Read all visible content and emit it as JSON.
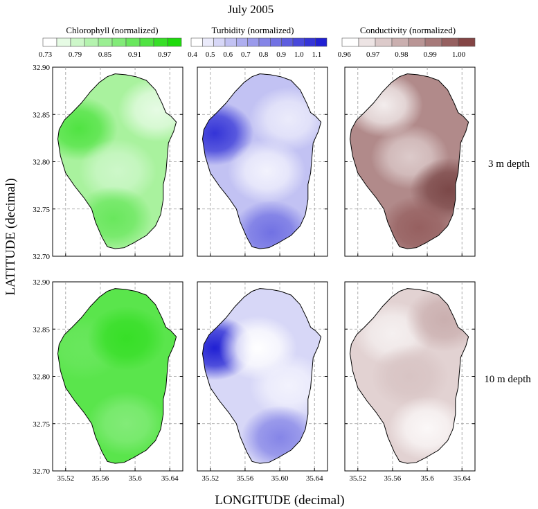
{
  "chart_data": {
    "type": "heatmap",
    "title": "July 2005",
    "xlabel": "LONGITUDE (decimal)",
    "ylabel": "LATITUDE (decimal)",
    "xlim": [
      35.505,
      35.655
    ],
    "ylim": [
      32.7,
      32.9
    ],
    "grid": true,
    "rows": [
      "3 m depth",
      "10 m depth"
    ],
    "y_ticks": [
      "32.90",
      "32.85",
      "32.80",
      "32.75",
      "32.70"
    ],
    "y_tick_values": [
      32.9,
      32.85,
      32.8,
      32.75,
      32.7
    ],
    "x_ticks": [
      {
        "labels": [
          "35.52",
          "35.56",
          "35.6",
          "35.64"
        ],
        "values": [
          35.52,
          35.56,
          35.6,
          35.64
        ]
      },
      {
        "labels": [
          "35.52",
          "35.56",
          "35.60",
          "35.64"
        ],
        "values": [
          35.52,
          35.56,
          35.6,
          35.64
        ]
      },
      {
        "labels": [
          "35.52",
          "35.56",
          "35.6",
          "35.64"
        ],
        "values": [
          35.52,
          35.56,
          35.6,
          35.64
        ]
      }
    ],
    "variables": [
      {
        "name": "Chlorophyll (normalized)",
        "colorbar_ticks": [
          "0.73",
          "0.79",
          "0.85",
          "0.91",
          "0.97"
        ],
        "colors": [
          "#ffffff",
          "#e6fbe4",
          "#cdf7c9",
          "#b4f3ae",
          "#9bef93",
          "#82eb78",
          "#69e75d",
          "#50e342",
          "#37df27",
          "#1edb0c"
        ],
        "maps": {
          "3 m depth": {
            "dominant": "#a9f29e",
            "spots": [
              {
                "lon": 35.535,
                "lat": 32.835,
                "color": "#50e342"
              },
              {
                "lon": 35.625,
                "lat": 32.855,
                "color": "#e6fbe4"
              },
              {
                "lon": 35.58,
                "lat": 32.79,
                "color": "#cdf7c9"
              },
              {
                "lon": 35.575,
                "lat": 32.74,
                "color": "#69e75d"
              }
            ]
          },
          "10 m depth": {
            "dominant": "#5ae54c",
            "spots": [
              {
                "lon": 35.54,
                "lat": 32.83,
                "color": "#69e75d"
              },
              {
                "lon": 35.59,
                "lat": 32.84,
                "color": "#37df27"
              },
              {
                "lon": 35.59,
                "lat": 32.75,
                "color": "#82eb78"
              }
            ]
          }
        }
      },
      {
        "name": "Turbidity (normalized)",
        "colorbar_ticks": [
          "0.4",
          "0.5",
          "0.6",
          "0.7",
          "0.8",
          "0.9",
          "1.0",
          "1.1"
        ],
        "colors": [
          "#ffffff",
          "#ebebfb",
          "#d7d7f7",
          "#c2c2f3",
          "#aeaeef",
          "#9a9aeb",
          "#8585e7",
          "#7171e3",
          "#5d5ddf",
          "#4848db",
          "#3434d7",
          "#2020d3"
        ],
        "maps": {
          "3 m depth": {
            "dominant": "#c2c2f3",
            "spots": [
              {
                "lon": 35.525,
                "lat": 32.83,
                "color": "#3434d7"
              },
              {
                "lon": 35.585,
                "lat": 32.79,
                "color": "#f2f2fd"
              },
              {
                "lon": 35.61,
                "lat": 32.845,
                "color": "#ebebfb"
              },
              {
                "lon": 35.59,
                "lat": 32.725,
                "color": "#7171e3"
              }
            ]
          },
          "10 m depth": {
            "dominant": "#d7d7f7",
            "spots": [
              {
                "lon": 35.525,
                "lat": 32.83,
                "color": "#2020d3"
              },
              {
                "lon": 35.575,
                "lat": 32.83,
                "color": "#ffffff"
              },
              {
                "lon": 35.61,
                "lat": 32.79,
                "color": "#f2f2fd"
              },
              {
                "lon": 35.6,
                "lat": 32.735,
                "color": "#8585e7"
              }
            ]
          }
        }
      },
      {
        "name": "Conductivity (normalized)",
        "colorbar_ticks": [
          "0.96",
          "0.97",
          "0.98",
          "0.99",
          "1.00"
        ],
        "colors": [
          "#ffffff",
          "#ede4e4",
          "#dccaca",
          "#caafaf",
          "#b99595",
          "#a77a7a",
          "#966060",
          "#844545"
        ],
        "maps": {
          "3 m depth": {
            "dominant": "#b18a8a",
            "spots": [
              {
                "lon": 35.55,
                "lat": 32.86,
                "color": "#f3eded"
              },
              {
                "lon": 35.58,
                "lat": 32.805,
                "color": "#dccaca"
              },
              {
                "lon": 35.625,
                "lat": 32.77,
                "color": "#7b4848"
              },
              {
                "lon": 35.59,
                "lat": 32.73,
                "color": "#966060"
              }
            ]
          },
          "10 m depth": {
            "dominant": "#e2d2d2",
            "spots": [
              {
                "lon": 35.56,
                "lat": 32.845,
                "color": "#f5f0f0"
              },
              {
                "lon": 35.62,
                "lat": 32.86,
                "color": "#caafaf"
              },
              {
                "lon": 35.58,
                "lat": 32.8,
                "color": "#d8c4c4"
              },
              {
                "lon": 35.6,
                "lat": 32.745,
                "color": "#fbf8f8"
              }
            ]
          }
        }
      }
    ]
  }
}
